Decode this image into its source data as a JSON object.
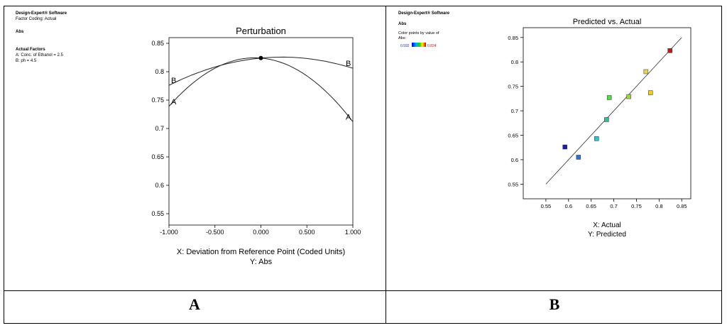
{
  "panel_a": {
    "header": {
      "software": "Design-Expert® Software",
      "coding": "Factor Coding: Actual",
      "response": "Abs",
      "factors_heading": "Actual Factors",
      "factor_a": "A: Conc. of Ethanol = 2.5",
      "factor_b": "B: ph = 4.5"
    },
    "letter": "A"
  },
  "panel_b": {
    "header": {
      "software": "Design-Expert® Software",
      "response": "Abs",
      "color_label": "Color points by value of Abs:",
      "color_min": "0.592",
      "color_max": "0.824",
      "color_low": "#0000cc",
      "color_high": "#cc0000"
    },
    "letter": "B"
  },
  "chart_data": [
    {
      "type": "line",
      "title": "Perturbation",
      "xlabel": "X: Deviation from Reference Point (Coded Units)",
      "ylabel": "Y: Abs",
      "xlim": [
        -1.0,
        1.0
      ],
      "ylim": [
        0.53,
        0.86
      ],
      "xticks": [
        -1.0,
        -0.5,
        0.0,
        0.5,
        1.0
      ],
      "xtick_labels": [
        "-1.000",
        "-0.500",
        "0.000",
        "0.500",
        "1.000"
      ],
      "yticks": [
        0.55,
        0.6,
        0.65,
        0.7,
        0.75,
        0.8,
        0.85
      ],
      "ytick_labels": [
        "0.55",
        "0.6",
        "0.65",
        "0.7",
        "0.75",
        "0.8",
        "0.85"
      ],
      "series": [
        {
          "name": "A",
          "x": [
            -1.0,
            -0.5,
            0.0,
            0.5,
            1.0
          ],
          "y": [
            0.739,
            0.8,
            0.824,
            0.796,
            0.712
          ]
        },
        {
          "name": "B",
          "x": [
            -1.0,
            -0.5,
            0.0,
            0.5,
            1.0
          ],
          "y": [
            0.776,
            0.806,
            0.824,
            0.827,
            0.806
          ]
        }
      ],
      "reference_point": {
        "x": 0.0,
        "y": 0.824
      }
    },
    {
      "type": "scatter",
      "title": "Predicted vs. Actual",
      "xlabel": "X: Actual",
      "ylabel": "Y: Predicted",
      "xlim": [
        0.5,
        0.87
      ],
      "ylim": [
        0.52,
        0.87
      ],
      "xticks": [
        0.55,
        0.6,
        0.65,
        0.7,
        0.75,
        0.8,
        0.85
      ],
      "xtick_labels": [
        "0.55",
        "0.6",
        "0.65",
        "0.7",
        "0.75",
        "0.8",
        "0.85"
      ],
      "yticks": [
        0.55,
        0.6,
        0.65,
        0.7,
        0.75,
        0.8,
        0.85
      ],
      "ytick_labels": [
        "0.55",
        "0.6",
        "0.65",
        "0.7",
        "0.75",
        "0.8",
        "0.85"
      ],
      "reference_line": [
        [
          0.55,
          0.55
        ],
        [
          0.85,
          0.85
        ]
      ],
      "points": [
        {
          "x": 0.592,
          "y": 0.626,
          "color": "#1f1f9e"
        },
        {
          "x": 0.622,
          "y": 0.605,
          "color": "#2f6fd0"
        },
        {
          "x": 0.662,
          "y": 0.643,
          "color": "#34c0c8"
        },
        {
          "x": 0.684,
          "y": 0.682,
          "color": "#3cb89a"
        },
        {
          "x": 0.69,
          "y": 0.727,
          "color": "#5ad64a"
        },
        {
          "x": 0.733,
          "y": 0.729,
          "color": "#9cd83a"
        },
        {
          "x": 0.771,
          "y": 0.78,
          "color": "#e8d640"
        },
        {
          "x": 0.781,
          "y": 0.737,
          "color": "#f0c830"
        },
        {
          "x": 0.824,
          "y": 0.823,
          "color": "#b02020"
        }
      ]
    }
  ]
}
